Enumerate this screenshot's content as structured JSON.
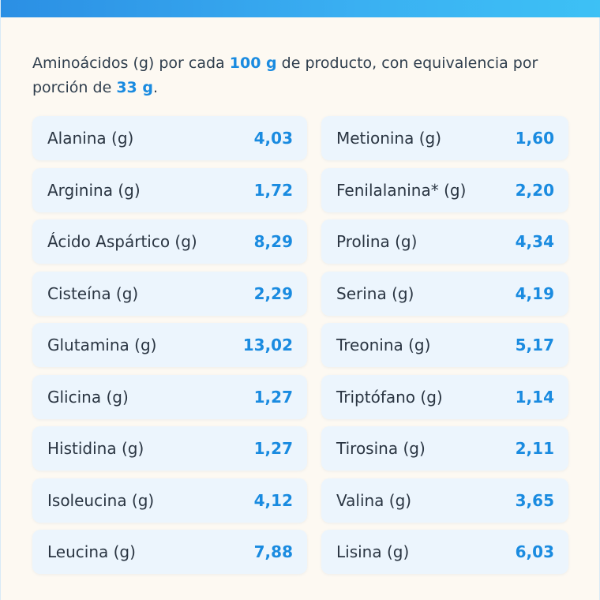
{
  "intro": {
    "part1": "Aminoácidos (g) por cada ",
    "amount_product": "100 g",
    "part2": " de producto, con equivalencia por porción de ",
    "amount_portion": "33 g",
    "part3": "."
  },
  "amino_acids": [
    {
      "name": "Alanina (g)",
      "value": "4,03"
    },
    {
      "name": "Metionina (g)",
      "value": "1,60"
    },
    {
      "name": "Arginina (g)",
      "value": "1,72"
    },
    {
      "name": "Fenilalanina* (g)",
      "value": "2,20"
    },
    {
      "name": "Ácido Aspártico (g)",
      "value": "8,29"
    },
    {
      "name": "Prolina (g)",
      "value": "4,34"
    },
    {
      "name": "Cisteína (g)",
      "value": "2,29"
    },
    {
      "name": "Serina (g)",
      "value": "4,19"
    },
    {
      "name": "Glutamina (g)",
      "value": "13,02"
    },
    {
      "name": "Treonina (g)",
      "value": "5,17"
    },
    {
      "name": "Glicina (g)",
      "value": "1,27"
    },
    {
      "name": "Triptófano (g)",
      "value": "1,14"
    },
    {
      "name": "Histidina (g)",
      "value": "1,27"
    },
    {
      "name": "Tirosina (g)",
      "value": "2,11"
    },
    {
      "name": "Isoleucina (g)",
      "value": "4,12"
    },
    {
      "name": "Valina (g)",
      "value": "3,65"
    },
    {
      "name": "Leucina (g)",
      "value": "7,88"
    },
    {
      "name": "Lisina (g)",
      "value": "6,03"
    }
  ],
  "colors": {
    "accent": "#1a8be0",
    "cell_background": "#ecf5fd",
    "page_background": "#fdf9f2",
    "text": "#2a3542"
  }
}
